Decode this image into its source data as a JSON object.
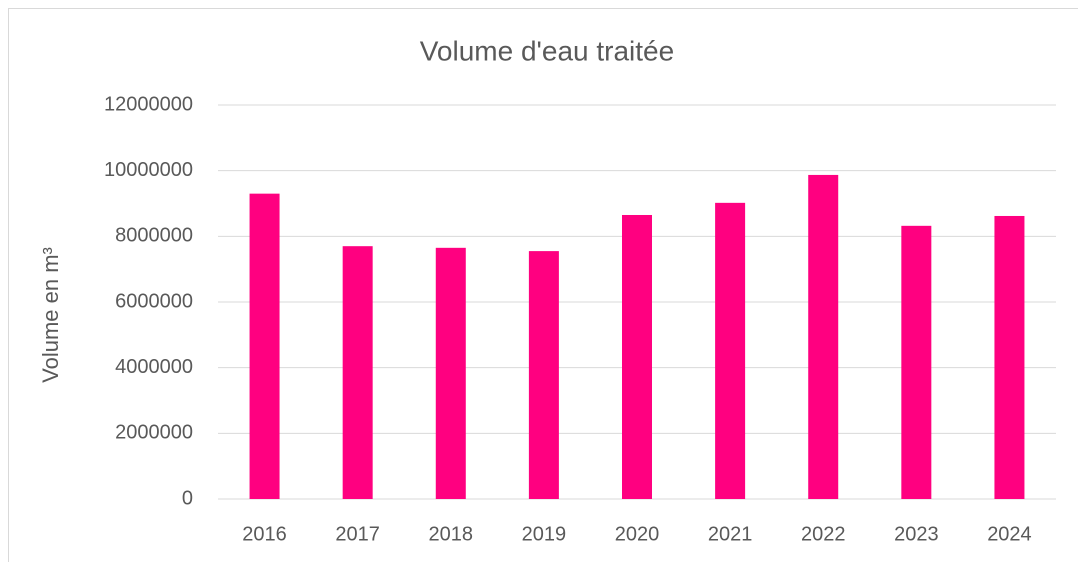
{
  "chart_data": {
    "type": "bar",
    "title": "Volume d'eau traitée",
    "y_label": "Volume en m³",
    "categories": [
      "2016",
      "2017",
      "2018",
      "2019",
      "2020",
      "2021",
      "2022",
      "2023",
      "2024"
    ],
    "values": [
      9300000,
      7700000,
      7650000,
      7550000,
      8650000,
      9020000,
      9870000,
      8320000,
      8620000
    ],
    "color": "#ff0080",
    "ylim": [
      0,
      12000000
    ],
    "yticks": [
      0,
      2000000,
      4000000,
      6000000,
      8000000,
      10000000,
      12000000
    ],
    "grid": true
  }
}
